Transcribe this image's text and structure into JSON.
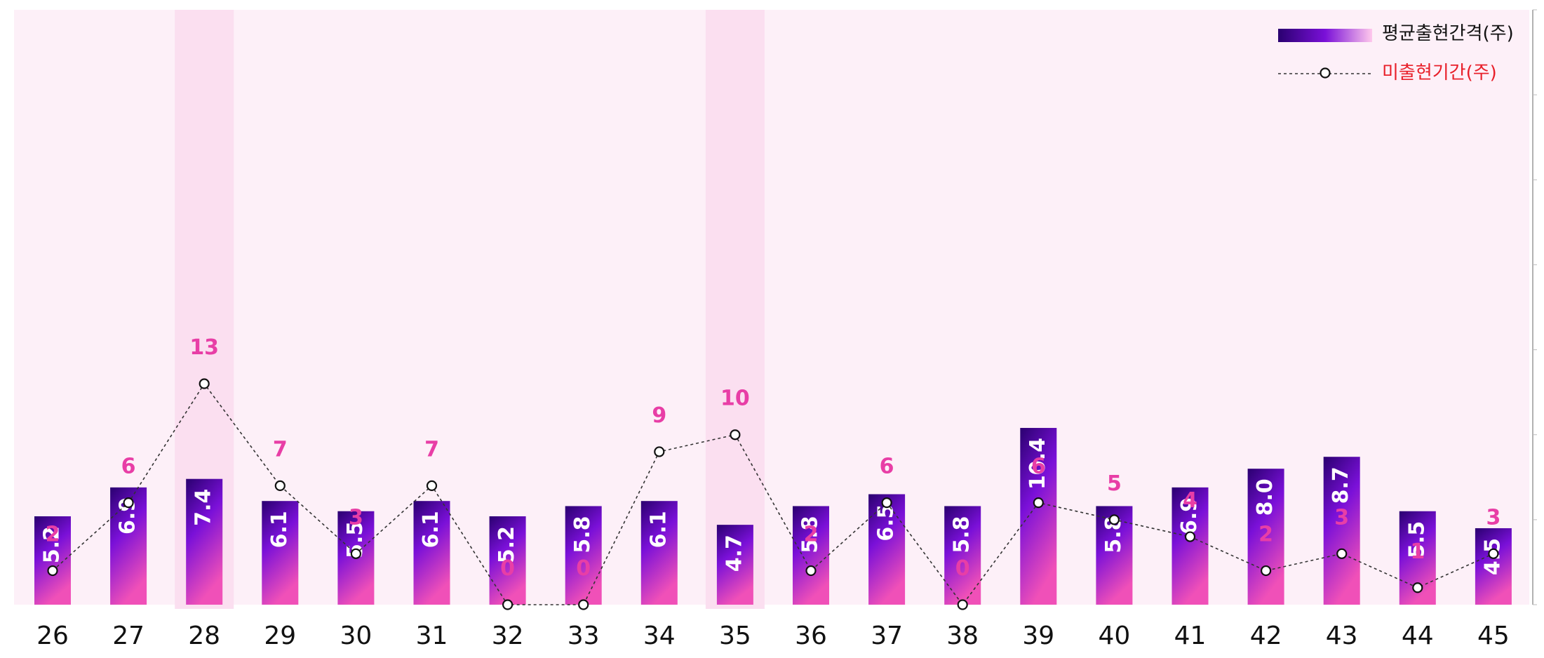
{
  "chart_data": {
    "type": "bar",
    "categories": [
      "26",
      "27",
      "28",
      "29",
      "30",
      "31",
      "32",
      "33",
      "34",
      "35",
      "36",
      "37",
      "38",
      "39",
      "40",
      "41",
      "42",
      "43",
      "44",
      "45"
    ],
    "series": [
      {
        "name": "평균출현간격(주)",
        "type": "bar",
        "values": [
          5.2,
          6.9,
          7.4,
          6.1,
          5.5,
          6.1,
          5.2,
          5.8,
          6.1,
          4.7,
          5.8,
          6.5,
          5.8,
          10.4,
          5.8,
          6.9,
          8.0,
          8.7,
          5.5,
          4.5
        ],
        "value_labels": [
          "5.2",
          "6.9",
          "7.4",
          "6.1",
          "5.5",
          "6.1",
          "5.2",
          "5.8",
          "6.1",
          "4.7",
          "5.8",
          "6.5",
          "5.8",
          "10.4",
          "5.8",
          "6.9",
          "8.0",
          "8.7",
          "5.5",
          "4.5"
        ]
      },
      {
        "name": "미출현기간(주)",
        "type": "line",
        "values": [
          2,
          6,
          13,
          7,
          3,
          7,
          0,
          0,
          9,
          10,
          2,
          6,
          0,
          6,
          5,
          4,
          2,
          3,
          1,
          3
        ],
        "value_labels": [
          "2",
          "6",
          "13",
          "7",
          "3",
          "7",
          "0",
          "0",
          "9",
          "10",
          "2",
          "6",
          "0",
          "6",
          "5",
          "4",
          "2",
          "3",
          "1",
          "3"
        ]
      }
    ],
    "highlighted_categories": [
      "28",
      "35"
    ],
    "ylim": [
      0,
      35
    ],
    "legend": "top-right",
    "grid": false,
    "colors": {
      "background": "#fdf0f8",
      "highlight_band": "#fbdff0",
      "bar_top": "#2a0070",
      "bar_mid": "#7a10d8",
      "bar_bottom": "#f050b8",
      "line": "#333333",
      "gap_label": "#e83ea6",
      "bar_label": "#ffffff",
      "legend_line_text": "#e8202a",
      "legend_bar_text": "#111111"
    }
  }
}
